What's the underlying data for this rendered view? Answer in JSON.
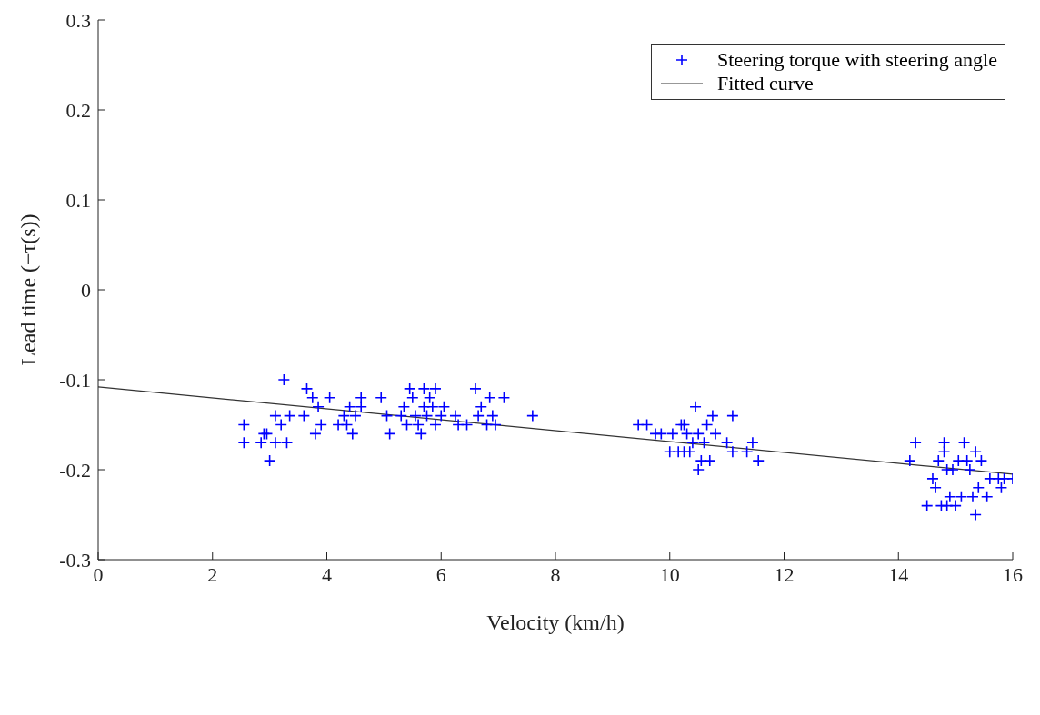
{
  "chart_data": {
    "type": "scatter",
    "xlabel": "Velocity (km/h)",
    "ylabel": "Lead time   (−τ(s))",
    "xlim": [
      0,
      16
    ],
    "xticks": [
      0,
      2,
      4,
      6,
      8,
      10,
      12,
      14,
      16
    ],
    "ylim": [
      -0.3,
      0.3
    ],
    "yticks": [
      -0.3,
      -0.2,
      -0.1,
      0,
      0.1,
      0.2,
      0.3
    ],
    "grid": false,
    "legend": "top right",
    "marker": "cross",
    "series": [
      {
        "name": "Steering torque with steering angle",
        "color": "#0000ff",
        "x": [
          2.55,
          2.55,
          2.85,
          2.9,
          2.95,
          3.0,
          3.1,
          3.1,
          3.2,
          3.25,
          3.3,
          3.35,
          3.6,
          3.65,
          3.75,
          3.8,
          3.85,
          3.9,
          4.05,
          4.2,
          4.3,
          4.35,
          4.4,
          4.45,
          4.5,
          4.6,
          4.6,
          4.95,
          5.05,
          5.1,
          5.3,
          5.35,
          5.4,
          5.45,
          5.5,
          5.55,
          5.6,
          5.65,
          5.7,
          5.7,
          5.75,
          5.8,
          5.85,
          5.9,
          5.9,
          6.0,
          6.05,
          6.25,
          6.3,
          6.45,
          6.6,
          6.65,
          6.7,
          6.8,
          6.85,
          6.9,
          6.95,
          7.1,
          7.6,
          9.45,
          9.6,
          9.75,
          9.85,
          10.0,
          10.05,
          10.15,
          10.2,
          10.25,
          10.3,
          10.35,
          10.4,
          10.45,
          10.5,
          10.55,
          10.6,
          10.65,
          10.7,
          10.75,
          10.8,
          11.0,
          11.1,
          11.1,
          11.35,
          11.45,
          11.55,
          10.5,
          10.25,
          14.2,
          14.3,
          14.5,
          14.6,
          14.65,
          14.7,
          14.75,
          14.8,
          14.8,
          14.85,
          14.9,
          14.95,
          15.0,
          15.05,
          15.1,
          15.15,
          15.2,
          15.25,
          15.3,
          15.35,
          15.35,
          15.4,
          15.45,
          15.55,
          15.6,
          15.75,
          15.8,
          15.85,
          16.0,
          14.85
        ],
        "values": [
          -0.15,
          -0.17,
          -0.17,
          -0.16,
          -0.16,
          -0.19,
          -0.17,
          -0.14,
          -0.15,
          -0.1,
          -0.17,
          -0.14,
          -0.14,
          -0.11,
          -0.12,
          -0.16,
          -0.13,
          -0.15,
          -0.12,
          -0.15,
          -0.14,
          -0.15,
          -0.13,
          -0.16,
          -0.14,
          -0.12,
          -0.13,
          -0.12,
          -0.14,
          -0.16,
          -0.14,
          -0.13,
          -0.15,
          -0.11,
          -0.12,
          -0.14,
          -0.15,
          -0.16,
          -0.11,
          -0.13,
          -0.14,
          -0.12,
          -0.13,
          -0.15,
          -0.11,
          -0.14,
          -0.13,
          -0.14,
          -0.15,
          -0.15,
          -0.11,
          -0.14,
          -0.13,
          -0.15,
          -0.12,
          -0.14,
          -0.15,
          -0.12,
          -0.14,
          -0.15,
          -0.15,
          -0.16,
          -0.16,
          -0.18,
          -0.16,
          -0.18,
          -0.15,
          -0.15,
          -0.16,
          -0.18,
          -0.17,
          -0.13,
          -0.2,
          -0.19,
          -0.17,
          -0.15,
          -0.19,
          -0.14,
          -0.16,
          -0.17,
          -0.14,
          -0.18,
          -0.18,
          -0.17,
          -0.19,
          -0.16,
          -0.18,
          -0.19,
          -0.17,
          -0.24,
          -0.21,
          -0.22,
          -0.19,
          -0.24,
          -0.17,
          -0.18,
          -0.2,
          -0.23,
          -0.2,
          -0.24,
          -0.19,
          -0.23,
          -0.17,
          -0.19,
          -0.2,
          -0.23,
          -0.18,
          -0.25,
          -0.22,
          -0.19,
          -0.23,
          -0.21,
          -0.21,
          -0.22,
          -0.21,
          -0.21,
          -0.24
        ]
      },
      {
        "name": "Fitted curve",
        "type": "line",
        "marker": "none",
        "color": "#333333",
        "x": [
          0,
          16
        ],
        "values": [
          -0.108,
          -0.205
        ]
      }
    ]
  }
}
